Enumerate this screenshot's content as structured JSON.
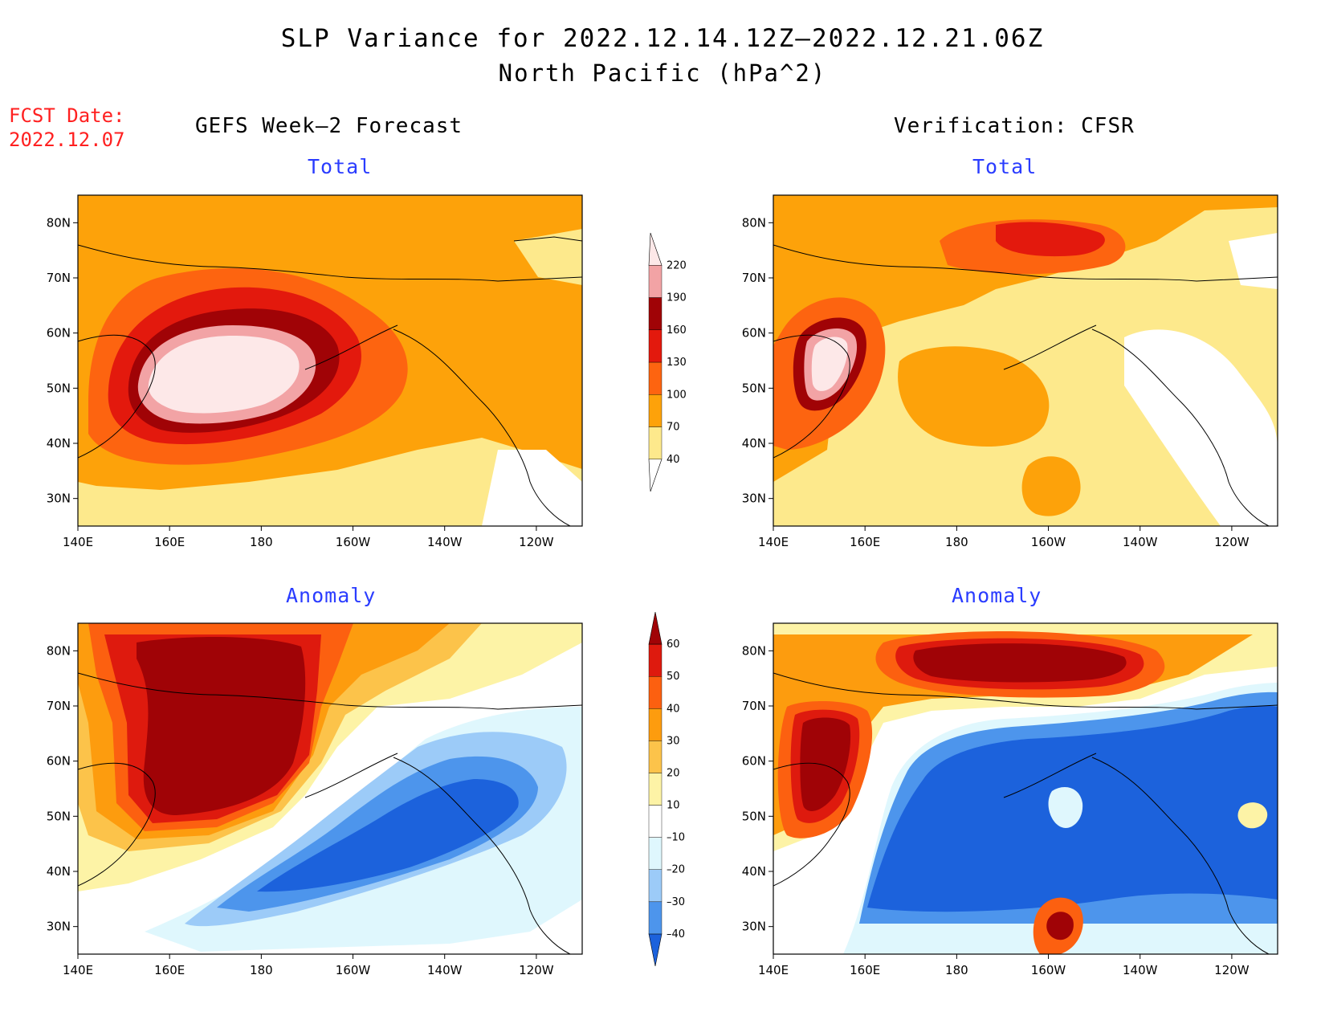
{
  "header": {
    "title": "SLP Variance for 2022.12.14.12Z–2022.12.21.06Z",
    "subtitle": "North Pacific (hPa^2)",
    "fcst_label": "FCST Date:",
    "fcst_date": "2022.12.07"
  },
  "columns": {
    "left": "GEFS Week–2 Forecast",
    "right": "Verification: CFSR"
  },
  "panels": [
    {
      "id": "gefs-total",
      "title": "Total"
    },
    {
      "id": "cfsr-total",
      "title": "Total"
    },
    {
      "id": "gefs-anomaly",
      "title": "Anomaly"
    },
    {
      "id": "cfsr-anomaly",
      "title": "Anomaly"
    }
  ],
  "axes": {
    "lon_ticks": [
      "140E",
      "160E",
      "180",
      "160W",
      "140W",
      "120W"
    ],
    "lat_ticks": [
      "30N",
      "40N",
      "50N",
      "60N",
      "70N",
      "80N"
    ]
  },
  "colorbars": {
    "total": {
      "labels": [
        "40",
        "70",
        "100",
        "130",
        "160",
        "190",
        "220"
      ],
      "colors": [
        "#ffffff",
        "#fde98c",
        "#fda20a",
        "#fd6410",
        "#e3190d",
        "#a00306",
        "#f2a3a5",
        "#fde8e8"
      ]
    },
    "anomaly": {
      "labels": [
        "-40",
        "-30",
        "-20",
        "-10",
        "10",
        "20",
        "30",
        "40",
        "50",
        "60"
      ],
      "colors": [
        "#1c62dc",
        "#4d95ec",
        "#9ccbf8",
        "#dff7fd",
        "#ffffff",
        "#fdf3a6",
        "#fcc34a",
        "#fd9c0e",
        "#fc6010",
        "#de1a0e",
        "#a00306"
      ]
    }
  }
}
